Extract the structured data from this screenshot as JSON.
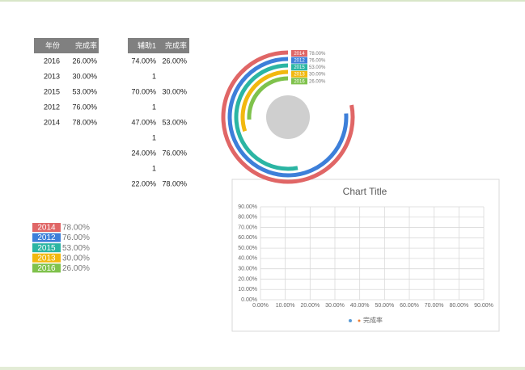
{
  "table1": {
    "headers": [
      "年份",
      "完成率"
    ],
    "rows": [
      [
        "2016",
        "26.00%"
      ],
      [
        "2013",
        "30.00%"
      ],
      [
        "2015",
        "53.00%"
      ],
      [
        "2012",
        "76.00%"
      ],
      [
        "2014",
        "78.00%"
      ]
    ]
  },
  "table2": {
    "headers": [
      "辅助1",
      "完成率"
    ],
    "rows": [
      [
        "74.00%",
        "26.00%"
      ],
      [
        "1"
      ],
      [
        "70.00%",
        "30.00%"
      ],
      [
        "1"
      ],
      [
        "47.00%",
        "53.00%"
      ],
      [
        "1"
      ],
      [
        "24.00%",
        "76.00%"
      ],
      [
        "1"
      ],
      [
        "22.00%",
        "78.00%"
      ]
    ]
  },
  "chart_data": [
    {
      "type": "radial-bar",
      "categories": [
        "2014",
        "2012",
        "2015",
        "2013",
        "2016"
      ],
      "values": [
        78,
        76,
        53,
        30,
        26
      ],
      "value_labels": [
        "78.00%",
        "76.00%",
        "53.00%",
        "30.00%",
        "26.00%"
      ],
      "colors": [
        "#e06666",
        "#3d7fd9",
        "#2bb5a3",
        "#f2b80f",
        "#7fc24c"
      ]
    },
    {
      "type": "scatter",
      "title": "Chart Title",
      "series": [
        {
          "name": "完成率",
          "color": "#5b9bd5",
          "x": [],
          "values": []
        }
      ],
      "xlim": [
        0,
        90
      ],
      "ylim": [
        0,
        90
      ],
      "xticks": [
        {
          "value": 0,
          "label": "0.00%"
        },
        {
          "value": 10,
          "label": "10.00%"
        },
        {
          "value": 20,
          "label": "20.00%"
        },
        {
          "value": 30,
          "label": "30.00%"
        },
        {
          "value": 40,
          "label": "40.00%"
        },
        {
          "value": 50,
          "label": "50.00%"
        },
        {
          "value": 60,
          "label": "60.00%"
        },
        {
          "value": 70,
          "label": "70.00%"
        },
        {
          "value": 80,
          "label": "80.00%"
        },
        {
          "value": 90,
          "label": "90.00%"
        }
      ],
      "yticks": [
        {
          "value": 0,
          "label": "0.00%"
        },
        {
          "value": 10,
          "label": "10.00%"
        },
        {
          "value": 20,
          "label": "20.00%"
        },
        {
          "value": 30,
          "label": "30.00%"
        },
        {
          "value": 40,
          "label": "40.00%"
        },
        {
          "value": 50,
          "label": "50.00%"
        },
        {
          "value": 60,
          "label": "60.00%"
        },
        {
          "value": 70,
          "label": "70.00%"
        },
        {
          "value": 80,
          "label": "80.00%"
        },
        {
          "value": 90,
          "label": "90.00%"
        }
      ],
      "grid": true
    }
  ]
}
